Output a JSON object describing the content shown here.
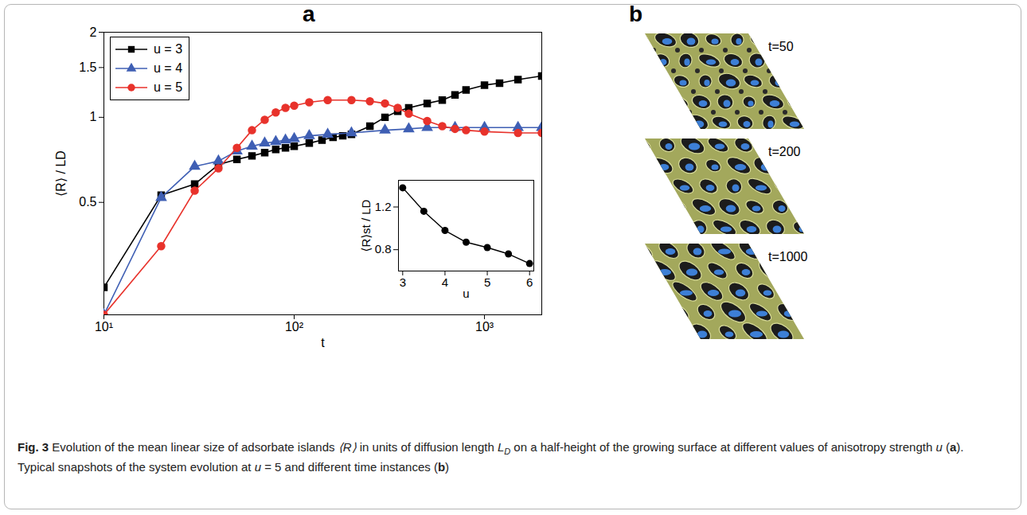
{
  "chart_data": [
    {
      "type": "line",
      "x_label": "t",
      "y_label": "⟨R⟩ / LD",
      "log": true,
      "grid": false,
      "legend": "top-left",
      "xlim": [
        10,
        2000
      ],
      "ylim": [
        0.2,
        2
      ],
      "xticks": [
        {
          "value": 10,
          "label": "10¹"
        },
        {
          "value": 100,
          "label": "10²"
        },
        {
          "value": 1000,
          "label": "10³"
        }
      ],
      "yticks": [
        0.5,
        1,
        1.5,
        2
      ],
      "series": [
        {
          "name": "u = 3",
          "color": "#000000",
          "marker": "square",
          "x": [
            10,
            20,
            30,
            40,
            50,
            60,
            70,
            80,
            90,
            100,
            120,
            140,
            160,
            180,
            200,
            250,
            300,
            350,
            400,
            500,
            600,
            700,
            800,
            1000,
            1200,
            1500,
            2000
          ],
          "values": [
            0.25,
            0.53,
            0.58,
            0.68,
            0.71,
            0.73,
            0.75,
            0.77,
            0.78,
            0.79,
            0.81,
            0.83,
            0.85,
            0.86,
            0.87,
            0.93,
            1.0,
            1.05,
            1.08,
            1.12,
            1.15,
            1.2,
            1.25,
            1.3,
            1.32,
            1.36,
            1.4
          ]
        },
        {
          "name": "u = 4",
          "color": "#3f5fb4",
          "marker": "triangle",
          "x": [
            10,
            20,
            30,
            40,
            50,
            60,
            70,
            80,
            90,
            100,
            120,
            150,
            200,
            300,
            400,
            500,
            700,
            1000,
            1500,
            2000
          ],
          "values": [
            0.2,
            0.52,
            0.67,
            0.7,
            0.76,
            0.79,
            0.81,
            0.82,
            0.83,
            0.84,
            0.86,
            0.87,
            0.88,
            0.9,
            0.91,
            0.92,
            0.92,
            0.92,
            0.92,
            0.92
          ]
        },
        {
          "name": "u = 5",
          "color": "#e8322b",
          "marker": "circle",
          "x": [
            10,
            20,
            30,
            40,
            50,
            60,
            70,
            80,
            90,
            100,
            120,
            150,
            200,
            250,
            300,
            350,
            400,
            500,
            600,
            700,
            800,
            1000,
            1500,
            2000
          ],
          "values": [
            0.2,
            0.35,
            0.55,
            0.66,
            0.78,
            0.9,
            0.98,
            1.04,
            1.08,
            1.1,
            1.13,
            1.15,
            1.15,
            1.14,
            1.12,
            1.08,
            1.03,
            0.97,
            0.93,
            0.91,
            0.9,
            0.89,
            0.88,
            0.88
          ]
        }
      ]
    },
    {
      "type": "line",
      "x_label": "u",
      "y_label": "⟨R⟩st / LD",
      "grid": false,
      "color": "#000000",
      "marker": "circle",
      "x": [
        3,
        3.5,
        4,
        4.5,
        5,
        5.5,
        6
      ],
      "values": [
        1.38,
        1.16,
        0.98,
        0.87,
        0.82,
        0.76,
        0.67
      ],
      "xlim": [
        2.9,
        6.1
      ],
      "ylim": [
        0.6,
        1.45
      ],
      "xticks": [
        3,
        4,
        5,
        6
      ],
      "yticks": [
        0.8,
        1.2
      ]
    }
  ],
  "panels": {
    "a": "a",
    "b": "b"
  },
  "snapshots": [
    "t=50",
    "t=200",
    "t=1000"
  ],
  "caption": [
    {
      "text": "Fig. 3",
      "style": "bold"
    },
    {
      "text": " Evolution of the mean linear size of adsorbate islands "
    },
    {
      "text": "⟨R⟩",
      "style": "italic"
    },
    {
      "text": " in units of diffusion length "
    },
    {
      "text": "L",
      "style": "italic"
    },
    {
      "text": "D",
      "style": "sub"
    },
    {
      "text": " on a half-height of the growing surface at different values of anisotropy strength "
    },
    {
      "text": "u",
      "style": "italic"
    },
    {
      "text": " ("
    },
    {
      "text": "a",
      "style": "bold"
    },
    {
      "text": "). Typical snapshots of the system evolution at "
    },
    {
      "text": "u",
      "style": "italic"
    },
    {
      "text": " = 5 and different time instances ("
    },
    {
      "text": "b",
      "style": "bold"
    },
    {
      "text": ")"
    }
  ]
}
